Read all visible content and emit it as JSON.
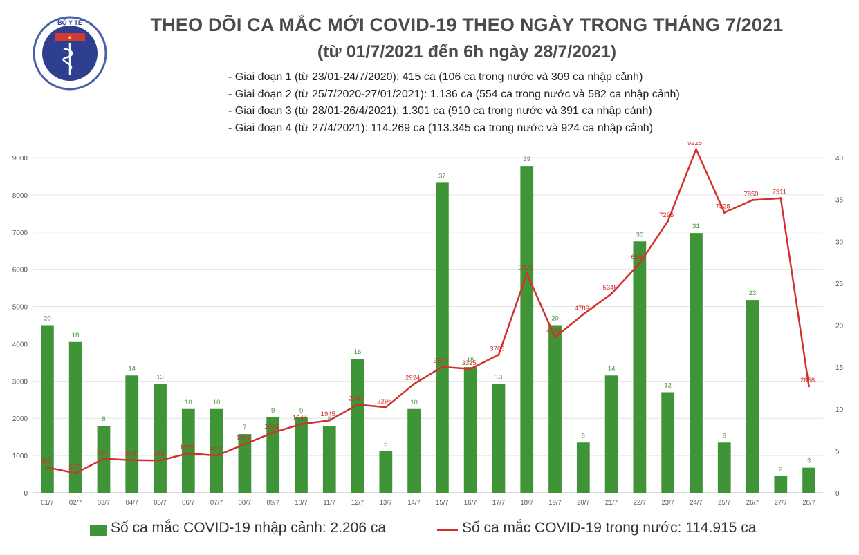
{
  "header": {
    "title": "THEO DÕI CA MẮC MỚI COVID-19 THEO NGÀY TRONG THÁNG 7/2021",
    "subtitle": "(từ 01/7/2021 đến 6h ngày 28/7/2021)",
    "phases": [
      "- Giai đoạn 1 (từ 23/01-24/7/2020): 415 ca (106 ca trong nước và 309 ca nhập cảnh)",
      "- Giai đoạn 2 (từ 25/7/2020-27/01/2021): 1.136 ca (554 ca trong nước và 582 ca nhập cảnh)",
      "- Giai đoạn 3 (từ 28/01-26/4/2021): 1.301 ca (910 ca trong nước và 391 ca nhập cảnh)",
      "- Giai đoạn 4 (từ 27/4/2021): 114.269 ca (113.345 ca trong nước và 924 ca nhập cảnh)"
    ]
  },
  "logo": {
    "text": "BỘ Y TẾ",
    "icon": "ministry-of-health-emblem-icon"
  },
  "legend": {
    "bar_label": "Số ca mắc COVID-19 nhập cảnh: 2.206 ca",
    "line_label": "Số ca mắc COVID-19 trong nước: 114.915 ca"
  },
  "colors": {
    "bar": "#3f9438",
    "line": "#d1302b",
    "bar_label": "#3f9438",
    "line_label": "#d1302b"
  },
  "chart_data": {
    "type": "bar",
    "categories": [
      "01/7",
      "02/7",
      "03/7",
      "04/7",
      "05/7",
      "06/7",
      "07/7",
      "08/7",
      "09/7",
      "10/7",
      "11/7",
      "12/7",
      "13/7",
      "14/7",
      "15/7",
      "16/7",
      "17/7",
      "18/7",
      "19/7",
      "20/7",
      "21/7",
      "22/7",
      "23/7",
      "24/7",
      "25/7",
      "26/7",
      "27/7",
      "28/7"
    ],
    "series": [
      {
        "name": "Số ca mắc COVID-19 nhập cảnh",
        "axis": "right",
        "kind": "bar",
        "values": [
          20,
          18,
          8,
          14,
          13,
          10,
          10,
          7,
          9,
          9,
          8,
          16,
          5,
          10,
          37,
          15,
          13,
          39,
          20,
          6,
          14,
          30,
          12,
          31,
          6,
          23,
          2,
          3
        ]
      },
      {
        "name": "Số ca mắc COVID-19 trong nước",
        "axis": "left",
        "kind": "line",
        "values": [
          683,
          527,
          914,
          876,
          869,
          1059,
          997,
          1307,
          1616,
          1844,
          1945,
          2367,
          2296,
          2924,
          3379,
          3325,
          3705,
          5887,
          4175,
          4789,
          5345,
          6164,
          7295,
          9225,
          7525,
          7859,
          7911,
          2858
        ]
      }
    ],
    "line_labels": [
      "683",
      "527",
      "914",
      "876",
      "869",
      "1059",
      "997",
      "1307",
      "1616",
      "1844",
      "1945",
      "2367",
      "2296",
      "2924",
      "3379",
      "3325",
      "3705",
      "5887",
      "4175",
      "4789",
      "5345",
      "6164",
      "7295",
      "9225",
      "7525",
      "7859",
      "7911",
      "2858"
    ],
    "y_left": {
      "min": 0,
      "max": 9000,
      "ticks": [
        0,
        1000,
        2000,
        3000,
        4000,
        5000,
        6000,
        7000,
        8000,
        9000
      ]
    },
    "y_right": {
      "min": 0,
      "max": 40,
      "ticks": [
        0,
        5,
        10,
        15,
        20,
        25,
        30,
        35,
        40
      ]
    },
    "grid": true,
    "legend_position": "bottom"
  }
}
